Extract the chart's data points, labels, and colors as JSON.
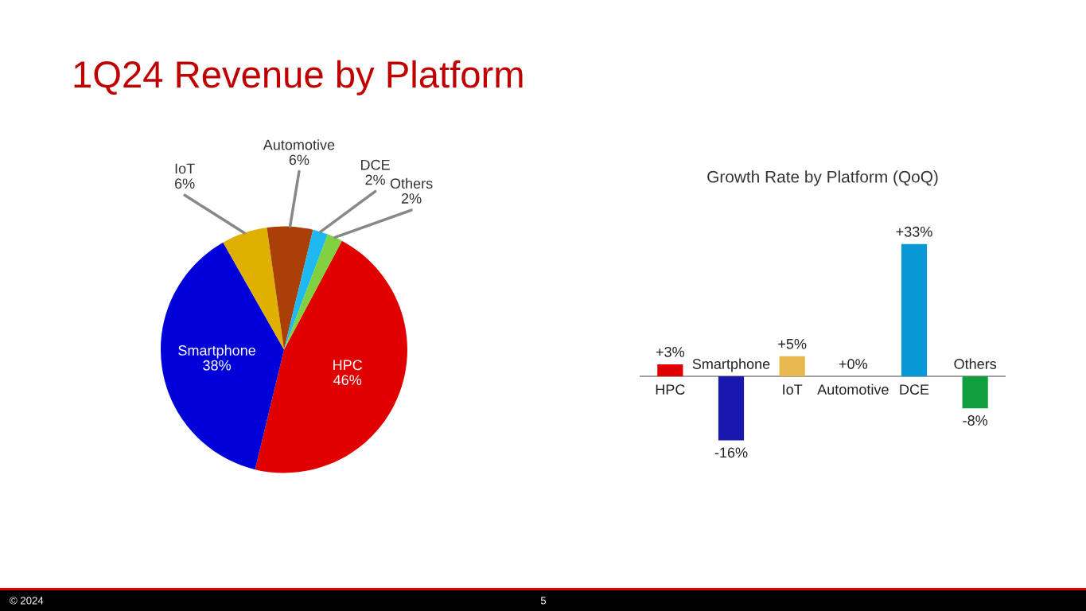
{
  "chart_data": [
    {
      "type": "pie",
      "title": "1Q24 Revenue by Platform",
      "categories": [
        "HPC",
        "Smartphone",
        "IoT",
        "Automotive",
        "DCE",
        "Others"
      ],
      "values": [
        46,
        38,
        6,
        6,
        2,
        2
      ],
      "value_labels": [
        "46%",
        "38%",
        "6%",
        "6%",
        "2%",
        "2%"
      ],
      "colors": [
        "#e00000",
        "#0000d8",
        "#e0b000",
        "#a84008",
        "#20b8f0",
        "#80d040"
      ],
      "annotations": [
        "© 2024",
        "5"
      ]
    },
    {
      "type": "bar",
      "title": "Growth Rate by Platform (QoQ)",
      "categories": [
        "HPC",
        "Smartphone",
        "IoT",
        "Automotive",
        "DCE",
        "Others"
      ],
      "values": [
        3,
        -16,
        5,
        0,
        33,
        -8
      ],
      "value_labels": [
        "+3%",
        "-16%",
        "+5%",
        "+0%",
        "+33%",
        "-8%"
      ],
      "colors": [
        "#e00000",
        "#1818b0",
        "#e8b850",
        "#888888",
        "#0898d8",
        "#10a040"
      ]
    }
  ]
}
